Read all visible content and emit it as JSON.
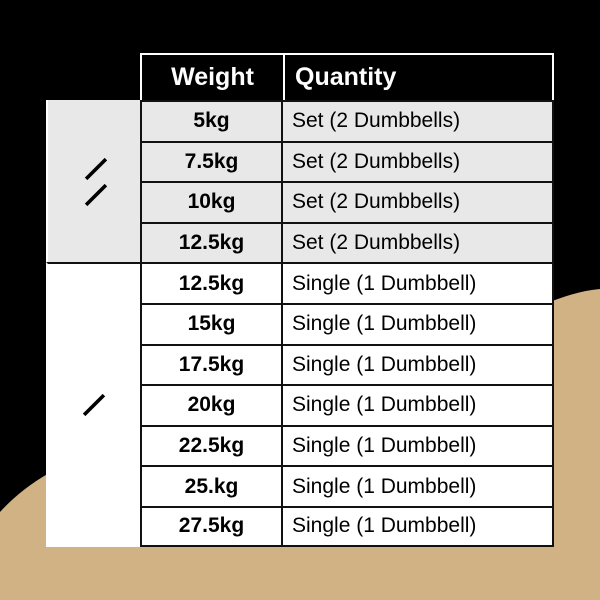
{
  "colors": {
    "background": "#000000",
    "accent": "#d1b285",
    "set_row": "#e8e8e8",
    "single_row": "#ffffff"
  },
  "header": {
    "weight": "Weight",
    "quantity": "Quantity"
  },
  "groups": [
    {
      "icon": "two-dumbbells-icon",
      "rows": [
        {
          "weight": "5kg",
          "quantity": "Set (2 Dumbbells)"
        },
        {
          "weight": "7.5kg",
          "quantity": "Set (2 Dumbbells)"
        },
        {
          "weight": "10kg",
          "quantity": "Set (2 Dumbbells)"
        },
        {
          "weight": "12.5kg",
          "quantity": "Set (2 Dumbbells)"
        }
      ]
    },
    {
      "icon": "dumbbell-icon",
      "rows": [
        {
          "weight": "12.5kg",
          "quantity": "Single (1 Dumbbell)"
        },
        {
          "weight": "15kg",
          "quantity": "Single (1 Dumbbell)"
        },
        {
          "weight": "17.5kg",
          "quantity": "Single (1 Dumbbell)"
        },
        {
          "weight": "20kg",
          "quantity": "Single (1 Dumbbell)"
        },
        {
          "weight": "22.5kg",
          "quantity": "Single (1 Dumbbell)"
        },
        {
          "weight": "25.kg",
          "quantity": "Single (1 Dumbbell)"
        },
        {
          "weight": "27.5kg",
          "quantity": "Single (1 Dumbbell)"
        }
      ]
    }
  ]
}
